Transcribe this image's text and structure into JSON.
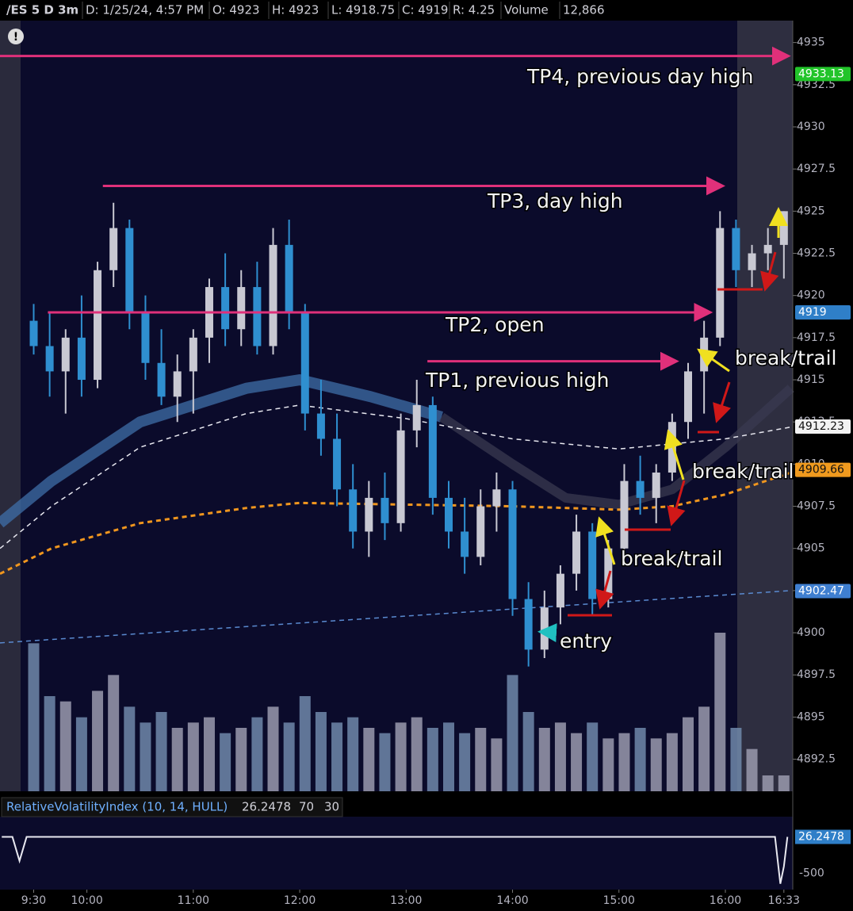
{
  "header": [
    "/ES 5 D 3m",
    "D: 1/25/24, 4:57 PM",
    "O: 4923",
    "H: 4923",
    "L: 4918.75",
    "C: 4919",
    "R: 4.25",
    "Volume",
    "12,866"
  ],
  "chart_data": {
    "type": "candlestick",
    "xlim": [
      "9:11",
      "16:38"
    ],
    "xticks": [
      "9:30",
      "10:00",
      "11:00",
      "12:00",
      "13:00",
      "14:00",
      "15:00",
      "16:00",
      "16:33"
    ],
    "ylim": [
      4890.6,
      4936.3
    ],
    "yticks": [
      4935,
      4932.5,
      4930,
      4927.5,
      4925,
      4922.5,
      4920,
      4917.5,
      4915,
      4912.5,
      4910,
      4907.5,
      4905,
      4902.5,
      4900,
      4897.5,
      4895,
      4892.5
    ],
    "candles": {
      "x": [
        "9:30",
        "9:39",
        "9:48",
        "9:57",
        "10:06",
        "10:15",
        "10:24",
        "10:33",
        "10:42",
        "10:51",
        "11:00",
        "11:09",
        "11:18",
        "11:27",
        "11:36",
        "11:45",
        "11:54",
        "12:03",
        "12:12",
        "12:21",
        "12:30",
        "12:39",
        "12:48",
        "12:57",
        "13:06",
        "13:15",
        "13:24",
        "13:33",
        "13:42",
        "13:51",
        "14:00",
        "14:09",
        "14:18",
        "14:27",
        "14:36",
        "14:45",
        "14:54",
        "15:03",
        "15:12",
        "15:21",
        "15:30",
        "15:39",
        "15:48",
        "15:57",
        "16:06",
        "16:15",
        "16:24",
        "16:33"
      ],
      "open": [
        4918.5,
        4917,
        4915.5,
        4917.5,
        4915,
        4921.5,
        4924,
        4919,
        4916,
        4914,
        4915.5,
        4917.5,
        4920.5,
        4918,
        4920.5,
        4917,
        4923,
        4919,
        4913,
        4911.5,
        4908.5,
        4906,
        4908,
        4906.5,
        4912,
        4913.5,
        4908,
        4906,
        4904.5,
        4907.5,
        4908.5,
        4902,
        4899,
        4901.5,
        4903.5,
        4906,
        4902,
        4905,
        4909,
        4908,
        4909.5,
        4912.5,
        4915.5,
        4917.5,
        4924,
        4921.5,
        4922.5,
        4923
      ],
      "high": [
        4919.5,
        4919,
        4918,
        4920,
        4922,
        4925.5,
        4924.5,
        4920,
        4918,
        4916.5,
        4918,
        4921,
        4922.5,
        4921.5,
        4922,
        4924,
        4924.5,
        4919.5,
        4915,
        4913,
        4910,
        4909,
        4909.5,
        4913,
        4915,
        4914,
        4909,
        4908,
        4908.5,
        4909.5,
        4909,
        4903,
        4902.5,
        4904,
        4907,
        4906.5,
        4905.5,
        4910,
        4910.5,
        4910,
        4913,
        4916,
        4918.5,
        4925,
        4924.5,
        4923,
        4924,
        4925
      ],
      "low": [
        4916.5,
        4914,
        4913,
        4914,
        4914.5,
        4920.5,
        4918,
        4915,
        4913.5,
        4912.5,
        4913,
        4916,
        4917,
        4917,
        4916.5,
        4916.5,
        4918,
        4912,
        4910.5,
        4907.5,
        4905,
        4904.5,
        4905.5,
        4906,
        4911,
        4907,
        4905,
        4903.5,
        4904,
        4906,
        4901,
        4898,
        4898.5,
        4900.5,
        4902.5,
        4901,
        4901.5,
        4904.5,
        4907,
        4906.5,
        4909,
        4911.5,
        4913,
        4917,
        4920.5,
        4920.5,
        4921.5,
        4921
      ],
      "close": [
        4917,
        4915.5,
        4917.5,
        4915,
        4921.5,
        4924,
        4919,
        4916,
        4914,
        4915.5,
        4917.5,
        4920.5,
        4918,
        4920.5,
        4917,
        4923,
        4919,
        4913,
        4911.5,
        4908.5,
        4906,
        4908,
        4906.5,
        4912,
        4913.5,
        4908,
        4906,
        4904.5,
        4907.5,
        4908.5,
        4902,
        4899,
        4901.5,
        4903.5,
        4906,
        4902,
        4905,
        4909,
        4908,
        4909.5,
        4912.5,
        4915.5,
        4917.5,
        4924,
        4921.5,
        4922.5,
        4923,
        4925
      ],
      "up_color": "#c8c8d2",
      "down_color": "#2f8fd0"
    },
    "volume": {
      "vlim": [
        0,
        21000
      ],
      "up_color": "#9a9aae",
      "down_color": "#7088aa",
      "values": [
        14000,
        9000,
        8500,
        7000,
        9500,
        11000,
        8000,
        6500,
        7500,
        6000,
        6500,
        7000,
        5500,
        6000,
        7000,
        8000,
        6500,
        9000,
        7500,
        6500,
        7000,
        6000,
        5500,
        6500,
        7000,
        6000,
        6500,
        5500,
        6000,
        5000,
        11000,
        7500,
        6000,
        6500,
        5500,
        6500,
        5000,
        5500,
        6000,
        5000,
        5500,
        7000,
        8000,
        15000,
        6000,
        4000,
        1500,
        1500
      ]
    },
    "lines": [
      {
        "color": "#3f6fa8",
        "width": 14,
        "dash": "",
        "x": [
          "9:11",
          "9:40",
          "10:30",
          "11:30",
          "12:00",
          "12:40",
          "13:20"
        ],
        "values": [
          4906.5,
          4909,
          4912.5,
          4914.5,
          4915,
          4914,
          4912.8
        ]
      },
      {
        "color": "#3a3a50",
        "width": 12,
        "dash": "",
        "x": [
          "13:20",
          "14:00",
          "14:30",
          "15:00",
          "15:30",
          "16:00",
          "16:37"
        ],
        "values": [
          4912.8,
          4910,
          4908,
          4907.6,
          4908.5,
          4911,
          4914.5
        ]
      },
      {
        "color": "#e8e8f0",
        "width": 1.5,
        "dash": "6 5",
        "x": [
          "9:11",
          "9:40",
          "10:30",
          "11:30",
          "12:00",
          "13:00",
          "14:00",
          "15:00",
          "16:00",
          "16:37"
        ],
        "values": [
          4905,
          4907.5,
          4911,
          4913,
          4913.5,
          4912.7,
          4911.5,
          4910.9,
          4911.5,
          4912.2
        ]
      },
      {
        "color": "#f0961e",
        "width": 3,
        "dash": "6 5",
        "x": [
          "9:11",
          "9:40",
          "10:30",
          "11:30",
          "12:00",
          "13:00",
          "14:00",
          "15:00",
          "15:30",
          "16:00",
          "16:37"
        ],
        "values": [
          4903.5,
          4905,
          4906.5,
          4907.4,
          4907.7,
          4907.6,
          4907.5,
          4907.3,
          4907.5,
          4908.2,
          4909.5
        ]
      },
      {
        "color": "#5a8ad0",
        "width": 1.5,
        "dash": "6 5",
        "x": [
          "9:11",
          "16:37"
        ],
        "values": [
          4899.4,
          4902.5
        ]
      }
    ],
    "price_tags": [
      {
        "value": 4933.13,
        "color": "#22c42a"
      },
      {
        "value": 4919,
        "color": "#2f7fc8"
      },
      {
        "value": 4912.23,
        "color": "#f2f2f2"
      },
      {
        "value": 4909.66,
        "color": "#f09a1e"
      },
      {
        "value": 4902.47,
        "color": "#3f7fd0"
      }
    ],
    "annotations": [
      {
        "text": "TP4, previous day high",
        "level": 4934.2,
        "start": "9:11",
        "end": "16:37"
      },
      {
        "text": "TP3, day high",
        "level": 4926.5,
        "start": "10:09",
        "end": "16:00"
      },
      {
        "text": "TP2, open",
        "level": 4919,
        "start": "9:38",
        "end": "15:53"
      },
      {
        "text": "TP1, previous high",
        "level": 4916.1,
        "start": "13:12",
        "end": "15:34"
      }
    ],
    "notes": [
      "break/trail",
      "break/trail",
      "break/trail",
      "entry"
    ],
    "rvi": {
      "name": "RelativeVolatilityIndex (10, 14, HULL)",
      "last": 26.2478,
      "levels": [
        70,
        30
      ],
      "ylim": [
        -734,
        318
      ],
      "yticks": [
        -500
      ],
      "color": "#e8e8f0",
      "x": [
        "9:12",
        "9:18",
        "9:22",
        "9:26",
        "9:32",
        "12:00",
        "14:00",
        "16:28",
        "16:31",
        "16:33",
        "16:35"
      ],
      "values": [
        26,
        26,
        -320,
        26,
        26,
        26,
        26,
        26,
        -650,
        -400,
        26
      ]
    }
  }
}
